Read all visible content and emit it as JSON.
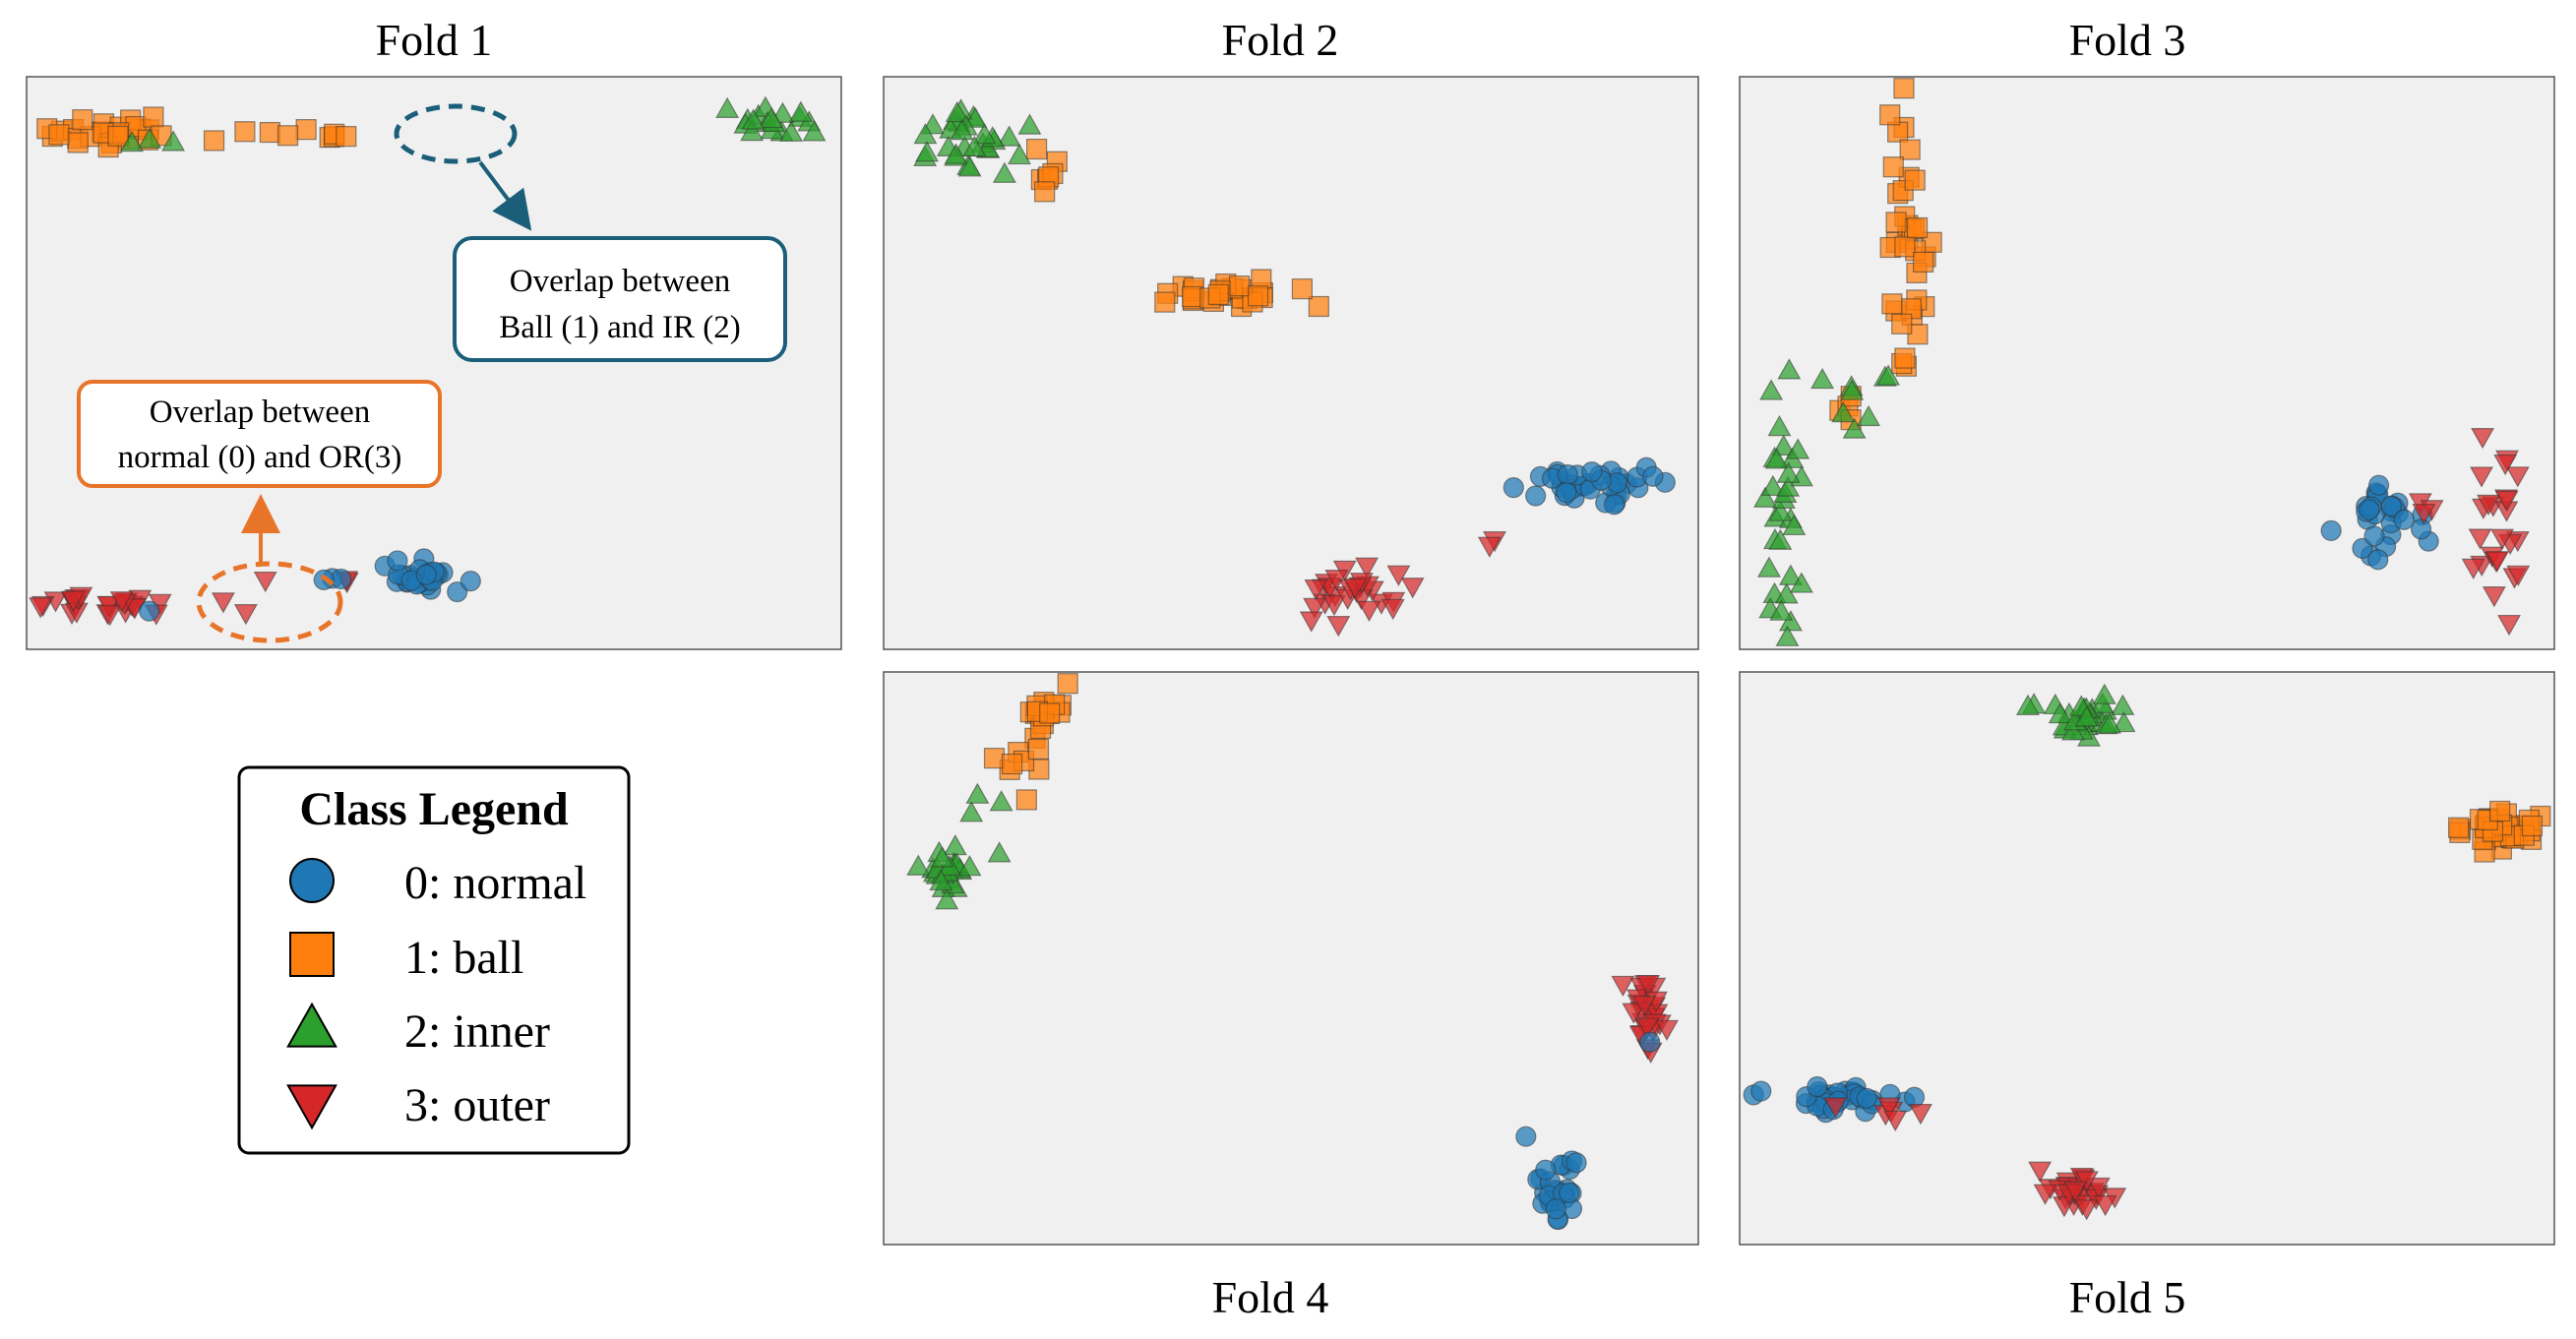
{
  "colors": {
    "panel_bg": "#f0f0f0",
    "normal": "#1f77b4",
    "ball": "#ff7f0e",
    "inner": "#2ca02c",
    "outer": "#d62728",
    "callout_blue": "#1b5e7a",
    "callout_orange": "#e8742a"
  },
  "legend": {
    "title": "Class Legend",
    "items": [
      {
        "label": "0: normal",
        "class": 0,
        "marker": "circle"
      },
      {
        "label": "1: ball",
        "class": 1,
        "marker": "square"
      },
      {
        "label": "2: inner",
        "class": 2,
        "marker": "triangle-up"
      },
      {
        "label": "3: outer",
        "class": 3,
        "marker": "triangle-down"
      }
    ]
  },
  "annotations": {
    "ball_ir": [
      "Overlap between",
      "Ball (1) and IR (2)"
    ],
    "normal_or": [
      "Overlap between",
      "normal (0) and OR(3)"
    ]
  },
  "chart_data": [
    {
      "type": "scatter",
      "title": "Fold 1",
      "xlim": [
        0,
        100
      ],
      "ylim": [
        0,
        100
      ],
      "clusters": [
        {
          "class": 1,
          "cx": 9,
          "cy": 9,
          "sx": 4.0,
          "sy": 1.2,
          "n": 26
        },
        {
          "class": 1,
          "cx": 30,
          "cy": 9,
          "sx": 7.0,
          "sy": 1.0,
          "n": 10
        },
        {
          "class": 2,
          "cx": 92,
          "cy": 7,
          "sx": 2.5,
          "sy": 1.2,
          "n": 18
        },
        {
          "class": 2,
          "cx": 12,
          "cy": 10,
          "sx": 3.0,
          "sy": 1.0,
          "n": 3
        },
        {
          "class": 3,
          "cx": 9,
          "cy": 93,
          "sx": 4.5,
          "sy": 0.8,
          "n": 26
        },
        {
          "class": 3,
          "cx": 25,
          "cy": 92,
          "sx": 1.0,
          "sy": 0.8,
          "n": 2
        },
        {
          "class": 3,
          "cx": 29,
          "cy": 89,
          "sx": 0.5,
          "sy": 0.5,
          "n": 1
        },
        {
          "class": 3,
          "cx": 38.5,
          "cy": 89,
          "sx": 0.6,
          "sy": 0.6,
          "n": 2
        },
        {
          "class": 0,
          "cx": 48,
          "cy": 88,
          "sx": 2.6,
          "sy": 1.4,
          "n": 30
        },
        {
          "class": 0,
          "cx": 38,
          "cy": 89,
          "sx": 1.0,
          "sy": 0.5,
          "n": 3
        },
        {
          "class": 0,
          "cx": 15,
          "cy": 94,
          "sx": 0.5,
          "sy": 0.5,
          "n": 1
        }
      ]
    },
    {
      "type": "scatter",
      "title": "Fold 2",
      "xlim": [
        0,
        100
      ],
      "ylim": [
        0,
        100
      ],
      "clusters": [
        {
          "class": 2,
          "cx": 10,
          "cy": 10,
          "sx": 4.5,
          "sy": 3.0,
          "n": 30
        },
        {
          "class": 1,
          "cx": 20,
          "cy": 14,
          "sx": 1.0,
          "sy": 3.5,
          "n": 7
        },
        {
          "class": 1,
          "cx": 41,
          "cy": 38,
          "sx": 5.5,
          "sy": 1.2,
          "n": 28
        },
        {
          "class": 0,
          "cx": 87,
          "cy": 72,
          "sx": 4.0,
          "sy": 2.0,
          "n": 38
        },
        {
          "class": 3,
          "cx": 58,
          "cy": 91,
          "sx": 3.0,
          "sy": 2.0,
          "n": 28
        },
        {
          "class": 3,
          "cx": 75,
          "cy": 81,
          "sx": 1.0,
          "sy": 0.6,
          "n": 2
        }
      ]
    },
    {
      "type": "scatter",
      "title": "Fold 3",
      "xlim": [
        0,
        100
      ],
      "ylim": [
        0,
        100
      ],
      "clusters": [
        {
          "class": 1,
          "cx": 20,
          "cy": 30,
          "sx": 1.2,
          "sy": 12,
          "n": 36
        },
        {
          "class": 1,
          "cx": 13,
          "cy": 58,
          "sx": 1.0,
          "sy": 3.0,
          "n": 4
        },
        {
          "class": 2,
          "cx": 5,
          "cy": 76,
          "sx": 1.2,
          "sy": 11,
          "n": 30
        },
        {
          "class": 2,
          "cx": 14,
          "cy": 58,
          "sx": 3.5,
          "sy": 3.0,
          "n": 8
        },
        {
          "class": 0,
          "cx": 79,
          "cy": 79,
          "sx": 3.0,
          "sy": 3.0,
          "n": 28
        },
        {
          "class": 3,
          "cx": 94,
          "cy": 80,
          "sx": 1.6,
          "sy": 7,
          "n": 24
        },
        {
          "class": 3,
          "cx": 85,
          "cy": 75,
          "sx": 1.0,
          "sy": 2.0,
          "n": 3
        }
      ]
    },
    {
      "type": "scatter",
      "title": "Fold 4",
      "xlim": [
        0,
        100
      ],
      "ylim": [
        0,
        100
      ],
      "clusters": [
        {
          "class": 1,
          "cx": 20,
          "cy": 6,
          "sx": 1.5,
          "sy": 2.0,
          "n": 18
        },
        {
          "class": 1,
          "cx": 16,
          "cy": 15,
          "sx": 1.2,
          "sy": 3.5,
          "n": 8
        },
        {
          "class": 2,
          "cx": 7,
          "cy": 35,
          "sx": 1.8,
          "sy": 2.5,
          "n": 24
        },
        {
          "class": 2,
          "cx": 12,
          "cy": 25,
          "sx": 1.5,
          "sy": 3.0,
          "n": 4
        },
        {
          "class": 3,
          "cx": 94,
          "cy": 60,
          "sx": 1.2,
          "sy": 3.5,
          "n": 28
        },
        {
          "class": 0,
          "cx": 83,
          "cy": 91,
          "sx": 1.5,
          "sy": 3.5,
          "n": 28
        },
        {
          "class": 0,
          "cx": 95,
          "cy": 65,
          "sx": 0.5,
          "sy": 0.5,
          "n": 1
        }
      ]
    },
    {
      "type": "scatter",
      "title": "Fold 5",
      "xlim": [
        0,
        100
      ],
      "ylim": [
        0,
        100
      ],
      "clusters": [
        {
          "class": 2,
          "cx": 42,
          "cy": 7,
          "sx": 3.0,
          "sy": 1.5,
          "n": 30
        },
        {
          "class": 1,
          "cx": 94,
          "cy": 27,
          "sx": 3.0,
          "sy": 1.5,
          "n": 36
        },
        {
          "class": 0,
          "cx": 11,
          "cy": 75,
          "sx": 4.0,
          "sy": 1.2,
          "n": 36
        },
        {
          "class": 3,
          "cx": 18,
          "cy": 77,
          "sx": 2.5,
          "sy": 1.0,
          "n": 6
        },
        {
          "class": 3,
          "cx": 41,
          "cy": 92,
          "sx": 2.5,
          "sy": 1.5,
          "n": 28
        }
      ]
    }
  ]
}
